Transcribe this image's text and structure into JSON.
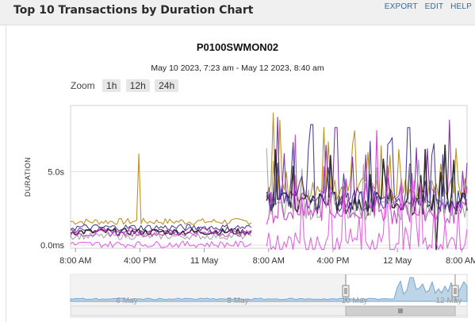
{
  "header": {
    "title": "Top 10 Transactions by Duration Chart",
    "links": [
      "EXPORT",
      "EDIT",
      "HELP"
    ]
  },
  "chart_header": {
    "title": "P0100SWMON02",
    "subtitle": "May 10 2023, 7:23 am - May 12 2023, 8:40 am"
  },
  "zoom": {
    "label": "Zoom",
    "buttons": [
      "1h",
      "12h",
      "24h"
    ]
  },
  "navigator": {
    "labels": [
      "6 May",
      "8 May",
      "10 May",
      "12 May"
    ]
  },
  "colors": [
    "#b8860b",
    "#7b1fa2",
    "#1a1a1a",
    "#a0a0a0",
    "#cc33cc",
    "#3b2f8f",
    "#e055e0",
    "#5a2d91"
  ],
  "chart_data": {
    "type": "line",
    "ylabel": "DURATION",
    "yticks": [
      "0.0ms",
      "5.0s"
    ],
    "ytick_values": [
      0,
      5
    ],
    "ylim": [
      0,
      9.5
    ],
    "xticks": [
      "8:00 AM",
      "4:00 PM",
      "11 May",
      "8:00 AM",
      "4:00 PM",
      "12 May",
      "8:00 AM"
    ],
    "xtick_hours": [
      0.617,
      8.617,
      16.617,
      24.617,
      32.617,
      40.617,
      48.617
    ],
    "xlim_hours": [
      0,
      49.28
    ],
    "x_unit": "hours since May 10 2023, 7:23 am",
    "grid": true,
    "series": [
      {
        "color": "#b8860b",
        "base_before": 1.6,
        "base_after": 3.8,
        "spikes": [
          [
            8.5,
            6.2
          ],
          [
            25.2,
            9.0
          ],
          [
            26.0,
            8.5
          ],
          [
            31.5,
            8.0
          ]
        ]
      },
      {
        "color": "#7b1fa2",
        "base_before": 1.0,
        "base_after": 3.2,
        "spikes": [
          [
            25.8,
            8.7
          ],
          [
            33.0,
            8.0
          ],
          [
            47.0,
            8.5
          ]
        ]
      },
      {
        "color": "#1a1a1a",
        "base_before": 0.9,
        "base_after": 2.8,
        "spikes": [
          [
            25.5,
            6.5
          ],
          [
            45.5,
            -0.3
          ]
        ]
      },
      {
        "color": "#a0a0a0",
        "base_before": 0.6,
        "base_after": 2.5,
        "spikes": []
      },
      {
        "color": "#cc33cc",
        "base_before": 0.8,
        "base_after": 2.2,
        "spikes": [
          [
            28.0,
            7.5
          ],
          [
            38.0,
            7.8
          ]
        ]
      },
      {
        "color": "#3b2f8f",
        "base_before": 1.2,
        "base_after": 3.0,
        "spikes": [
          [
            30.0,
            8.2
          ],
          [
            42.0,
            8.0
          ]
        ]
      },
      {
        "color": "#e055e0",
        "base_before": 0.05,
        "base_after": 0.05,
        "spikes": []
      }
    ]
  }
}
